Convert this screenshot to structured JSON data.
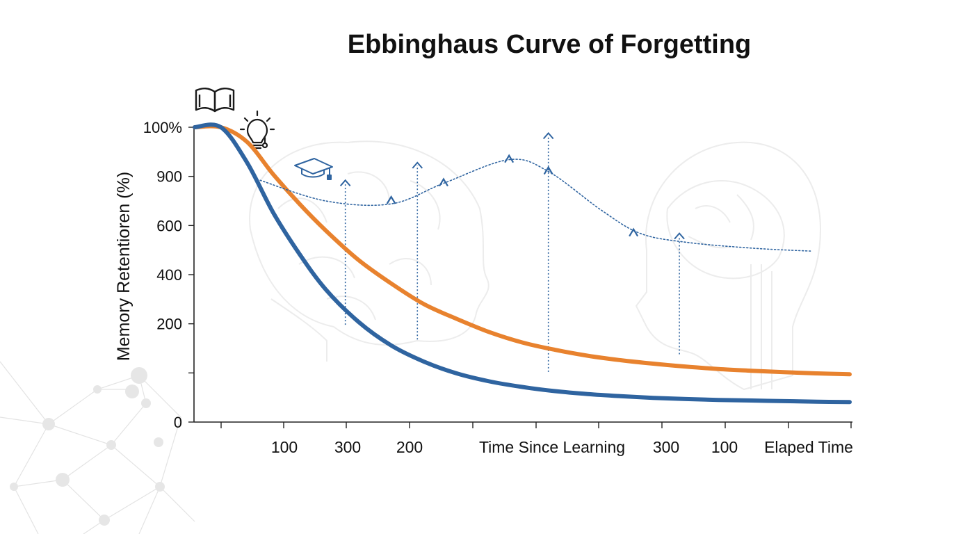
{
  "chart_data": {
    "type": "line",
    "title": "Ebbinghaus Curve of Forgetting",
    "xlabel": "",
    "ylabel": "Memory Retentioren (%)",
    "y_tick_labels": [
      "100%",
      "900",
      "600",
      "400",
      "200",
      "",
      "0"
    ],
    "x_tick_labels": [
      "100",
      "300",
      "200",
      "Time Since Learning",
      "300",
      "100",
      "Elaped Time"
    ],
    "x": [
      0,
      4,
      8,
      12,
      16,
      20,
      25,
      30,
      35,
      40,
      45,
      50,
      55,
      60,
      65,
      70,
      75,
      80,
      85,
      90,
      95,
      100
    ],
    "ylim": [
      0,
      100
    ],
    "grid": false,
    "series": [
      {
        "name": "Orange curve",
        "color": "#e8822e",
        "values": [
          100,
          100,
          95,
          84,
          74,
          65,
          55,
          47,
          40,
          35,
          30.5,
          27,
          24.5,
          22.5,
          21,
          19.8,
          18.8,
          18,
          17.4,
          16.9,
          16.5,
          16.2
        ]
      },
      {
        "name": "Blue curve",
        "color": "#2f64a0",
        "values": [
          100,
          100,
          88,
          71,
          57,
          45,
          34,
          26,
          20.5,
          16.5,
          13.8,
          11.9,
          10.5,
          9.5,
          8.8,
          8.2,
          7.8,
          7.5,
          7.3,
          7.1,
          6.9,
          6.8
        ]
      },
      {
        "name": "Review curve",
        "color": "#2f64a0",
        "style": "dotted",
        "x": [
          10,
          20,
          30,
          38,
          48,
          54,
          62,
          68,
          75,
          85,
          94
        ],
        "values": [
          82,
          75,
          74,
          81,
          89,
          85,
          72,
          64,
          61,
          59,
          58
        ]
      }
    ],
    "review_markers": {
      "color": "#2f64a0",
      "arrows": [
        {
          "x": 23,
          "from": 33,
          "to": 82
        },
        {
          "x": 34,
          "from": 28,
          "to": 88
        },
        {
          "x": 54,
          "from": 17,
          "to": 98
        },
        {
          "x": 74,
          "from": 23,
          "to": 64
        }
      ],
      "carets": [
        {
          "x": 30,
          "y": 75
        },
        {
          "x": 38,
          "y": 81
        },
        {
          "x": 48,
          "y": 89
        },
        {
          "x": 54,
          "y": 85
        },
        {
          "x": 67,
          "y": 64
        }
      ]
    },
    "icons": [
      "open-book-icon",
      "lightbulb-icon",
      "graduation-cap-icon",
      "brain-outline-icon",
      "head-profile-icon"
    ]
  }
}
